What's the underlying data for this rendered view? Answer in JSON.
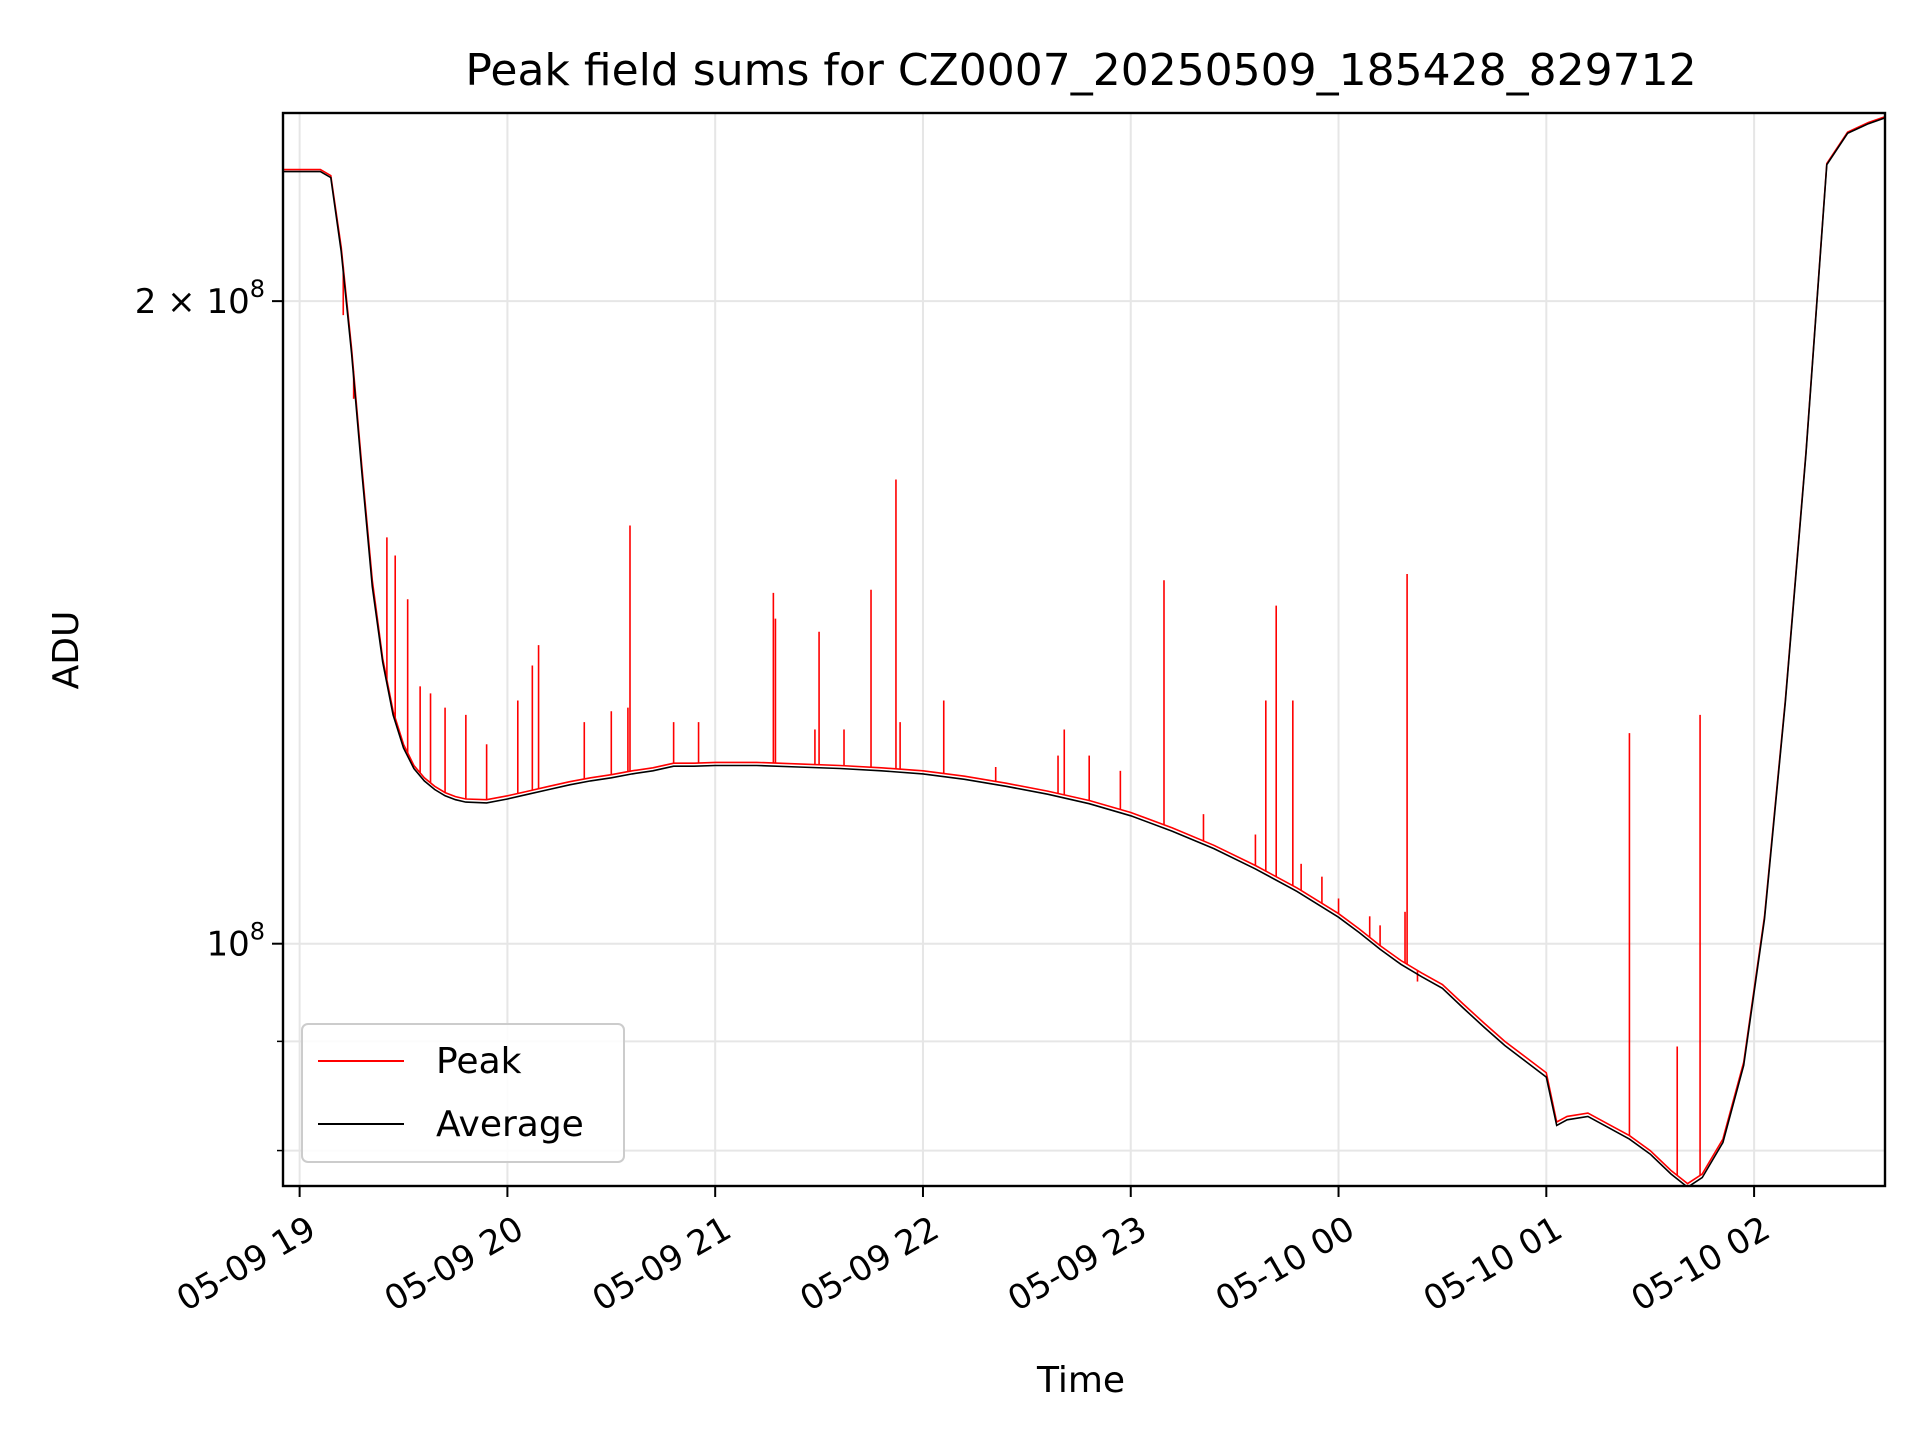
{
  "chart_data": {
    "type": "line",
    "title": "Peak field sums for CZ0007_20250509_185428_829712",
    "xlabel": "Time",
    "ylabel": "ADU",
    "yscale": "log",
    "grid": true,
    "legend_placement": "lower-left",
    "xlim_hours": [
      18.92,
      26.63
    ],
    "ylim": [
      77000000,
      245000000
    ],
    "x_ticks": [
      {
        "hour": 19,
        "label": "05-09 19"
      },
      {
        "hour": 20,
        "label": "05-09 20"
      },
      {
        "hour": 21,
        "label": "05-09 21"
      },
      {
        "hour": 22,
        "label": "05-09 22"
      },
      {
        "hour": 23,
        "label": "05-09 23"
      },
      {
        "hour": 24,
        "label": "05-10 00"
      },
      {
        "hour": 25,
        "label": "05-10 01"
      },
      {
        "hour": 26,
        "label": "05-10 02"
      }
    ],
    "y_ticks_major": [
      {
        "value": 100000000,
        "base": "10",
        "exp": "8",
        "coef": ""
      },
      {
        "value": 200000000,
        "base": "10",
        "exp": "8",
        "coef": "2 × "
      }
    ],
    "y_ticks_minor": [
      80000000,
      90000000
    ],
    "series": [
      {
        "name": "Peak",
        "color": "#ff0000",
        "points": [
          [
            18.92,
            230500000
          ],
          [
            19.1,
            230500000
          ],
          [
            19.15,
            229000000
          ],
          [
            19.2,
            212000000
          ],
          [
            19.25,
            190000000
          ],
          [
            19.3,
            167000000
          ],
          [
            19.35,
            148000000
          ],
          [
            19.4,
            136000000
          ],
          [
            19.45,
            128500000
          ],
          [
            19.5,
            124000000
          ],
          [
            19.55,
            121200000
          ],
          [
            19.6,
            119600000
          ],
          [
            19.65,
            118500000
          ],
          [
            19.7,
            117700000
          ],
          [
            19.75,
            117200000
          ],
          [
            19.8,
            116900000
          ],
          [
            19.9,
            116800000
          ],
          [
            20.0,
            117300000
          ],
          [
            20.1,
            117900000
          ],
          [
            20.2,
            118500000
          ],
          [
            20.3,
            119100000
          ],
          [
            20.4,
            119600000
          ],
          [
            20.5,
            120000000
          ],
          [
            20.6,
            120500000
          ],
          [
            20.7,
            120900000
          ],
          [
            20.8,
            121500000
          ],
          [
            20.9,
            121500000
          ],
          [
            21.0,
            121600000
          ],
          [
            21.2,
            121600000
          ],
          [
            21.4,
            121400000
          ],
          [
            21.6,
            121200000
          ],
          [
            21.8,
            120900000
          ],
          [
            22.0,
            120500000
          ],
          [
            22.2,
            119800000
          ],
          [
            22.4,
            118900000
          ],
          [
            22.6,
            117900000
          ],
          [
            22.8,
            116700000
          ],
          [
            23.0,
            115200000
          ],
          [
            23.2,
            113300000
          ],
          [
            23.4,
            111200000
          ],
          [
            23.6,
            108800000
          ],
          [
            23.8,
            106200000
          ],
          [
            24.0,
            103300000
          ],
          [
            24.1,
            101600000
          ],
          [
            24.2,
            99800000
          ],
          [
            24.3,
            98200000
          ],
          [
            24.4,
            96900000
          ],
          [
            24.5,
            95700000
          ],
          [
            24.6,
            93700000
          ],
          [
            24.7,
            91800000
          ],
          [
            24.8,
            90000000
          ],
          [
            24.9,
            88500000
          ],
          [
            25.0,
            87000000
          ],
          [
            25.05,
            82500000
          ],
          [
            25.1,
            83000000
          ],
          [
            25.2,
            83300000
          ],
          [
            25.3,
            82300000
          ],
          [
            25.4,
            81300000
          ],
          [
            25.5,
            80000000
          ],
          [
            25.6,
            78300000
          ],
          [
            25.68,
            77200000
          ],
          [
            25.75,
            78000000
          ],
          [
            25.85,
            81000000
          ],
          [
            25.95,
            88000000
          ],
          [
            26.05,
            103000000
          ],
          [
            26.15,
            130000000
          ],
          [
            26.25,
            170000000
          ],
          [
            26.35,
            232000000
          ],
          [
            26.45,
            240000000
          ],
          [
            26.55,
            242500000
          ],
          [
            26.63,
            244000000
          ]
        ],
        "spikes": [
          [
            19.21,
            197000000
          ],
          [
            19.26,
            180000000
          ],
          [
            19.42,
            155000000
          ],
          [
            19.46,
            152000000
          ],
          [
            19.52,
            145000000
          ],
          [
            19.58,
            132000000
          ],
          [
            19.63,
            131000000
          ],
          [
            19.7,
            129000000
          ],
          [
            19.8,
            128000000
          ],
          [
            19.9,
            124000000
          ],
          [
            20.05,
            130000000
          ],
          [
            20.12,
            135000000
          ],
          [
            20.15,
            138000000
          ],
          [
            20.37,
            127000000
          ],
          [
            20.5,
            128500000
          ],
          [
            20.58,
            129000000
          ],
          [
            20.59,
            157000000
          ],
          [
            20.8,
            127000000
          ],
          [
            20.92,
            127000000
          ],
          [
            21.28,
            146000000
          ],
          [
            21.29,
            142000000
          ],
          [
            21.48,
            126000000
          ],
          [
            21.5,
            140000000
          ],
          [
            21.62,
            126000000
          ],
          [
            21.75,
            146500000
          ],
          [
            21.87,
            165000000
          ],
          [
            21.89,
            127000000
          ],
          [
            22.1,
            130000000
          ],
          [
            22.35,
            121000000
          ],
          [
            22.65,
            122500000
          ],
          [
            22.68,
            126000000
          ],
          [
            22.8,
            122500000
          ],
          [
            22.95,
            120500000
          ],
          [
            23.16,
            148000000
          ],
          [
            23.35,
            115000000
          ],
          [
            23.6,
            112500000
          ],
          [
            23.65,
            130000000
          ],
          [
            23.7,
            144000000
          ],
          [
            23.78,
            130000000
          ],
          [
            23.82,
            109000000
          ],
          [
            23.92,
            107500000
          ],
          [
            24.0,
            105000000
          ],
          [
            24.15,
            103000000
          ],
          [
            24.2,
            102000000
          ],
          [
            24.32,
            103500000
          ],
          [
            24.33,
            149000000
          ],
          [
            24.38,
            96000000
          ],
          [
            25.4,
            125500000
          ],
          [
            25.63,
            89500000
          ],
          [
            25.74,
            128000000
          ]
        ]
      },
      {
        "name": "Average",
        "color": "#000000",
        "points": [
          [
            18.92,
            230000000
          ],
          [
            19.1,
            230000000
          ],
          [
            19.15,
            228500000
          ],
          [
            19.2,
            211000000
          ],
          [
            19.25,
            189000000
          ],
          [
            19.3,
            166000000
          ],
          [
            19.35,
            147000000
          ],
          [
            19.4,
            135500000
          ],
          [
            19.45,
            128000000
          ],
          [
            19.5,
            123500000
          ],
          [
            19.55,
            120800000
          ],
          [
            19.6,
            119200000
          ],
          [
            19.65,
            118100000
          ],
          [
            19.7,
            117300000
          ],
          [
            19.75,
            116800000
          ],
          [
            19.8,
            116500000
          ],
          [
            19.9,
            116400000
          ],
          [
            20.0,
            116900000
          ],
          [
            20.1,
            117500000
          ],
          [
            20.2,
            118100000
          ],
          [
            20.3,
            118700000
          ],
          [
            20.4,
            119200000
          ],
          [
            20.5,
            119600000
          ],
          [
            20.6,
            120100000
          ],
          [
            20.7,
            120500000
          ],
          [
            20.8,
            121100000
          ],
          [
            20.9,
            121100000
          ],
          [
            21.0,
            121200000
          ],
          [
            21.2,
            121200000
          ],
          [
            21.4,
            121000000
          ],
          [
            21.6,
            120800000
          ],
          [
            21.8,
            120500000
          ],
          [
            22.0,
            120100000
          ],
          [
            22.2,
            119400000
          ],
          [
            22.4,
            118500000
          ],
          [
            22.6,
            117500000
          ],
          [
            22.8,
            116300000
          ],
          [
            23.0,
            114800000
          ],
          [
            23.2,
            112900000
          ],
          [
            23.4,
            110800000
          ],
          [
            23.6,
            108400000
          ],
          [
            23.8,
            105800000
          ],
          [
            24.0,
            102900000
          ],
          [
            24.1,
            101200000
          ],
          [
            24.2,
            99400000
          ],
          [
            24.3,
            97800000
          ],
          [
            24.4,
            96500000
          ],
          [
            24.5,
            95300000
          ],
          [
            24.6,
            93300000
          ],
          [
            24.7,
            91400000
          ],
          [
            24.8,
            89600000
          ],
          [
            24.9,
            88100000
          ],
          [
            25.0,
            86600000
          ],
          [
            25.05,
            82200000
          ],
          [
            25.1,
            82700000
          ],
          [
            25.2,
            83000000
          ],
          [
            25.3,
            82000000
          ],
          [
            25.4,
            81000000
          ],
          [
            25.5,
            79700000
          ],
          [
            25.6,
            78000000
          ],
          [
            25.68,
            76900000
          ],
          [
            25.75,
            77700000
          ],
          [
            25.85,
            80700000
          ],
          [
            25.95,
            87700000
          ],
          [
            26.05,
            102700000
          ],
          [
            26.15,
            129700000
          ],
          [
            26.25,
            169700000
          ],
          [
            26.35,
            231700000
          ],
          [
            26.45,
            239700000
          ],
          [
            26.55,
            242200000
          ],
          [
            26.63,
            243700000
          ]
        ]
      }
    ]
  }
}
